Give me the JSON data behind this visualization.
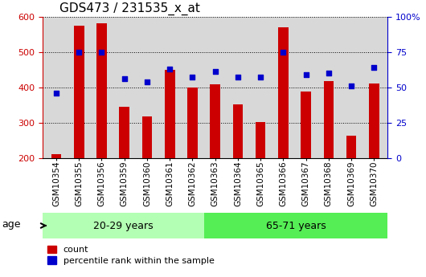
{
  "title": "GDS473 / 231535_x_at",
  "samples": [
    "GSM10354",
    "GSM10355",
    "GSM10356",
    "GSM10359",
    "GSM10360",
    "GSM10361",
    "GSM10362",
    "GSM10363",
    "GSM10364",
    "GSM10365",
    "GSM10366",
    "GSM10367",
    "GSM10368",
    "GSM10369",
    "GSM10370"
  ],
  "counts": [
    210,
    575,
    580,
    345,
    318,
    450,
    400,
    408,
    352,
    302,
    570,
    388,
    418,
    263,
    410
  ],
  "percentile_ranks": [
    46,
    75,
    75,
    56,
    54,
    63,
    57,
    61,
    57,
    57,
    75,
    59,
    60,
    51,
    64
  ],
  "group1_label": "20-29 years",
  "group2_label": "65-71 years",
  "group1_count": 7,
  "bar_color": "#cc0000",
  "dot_color": "#0000cc",
  "ylim_left": [
    200,
    600
  ],
  "ylim_right": [
    0,
    100
  ],
  "yticks_left": [
    200,
    300,
    400,
    500,
    600
  ],
  "yticks_right": [
    0,
    25,
    50,
    75,
    100
  ],
  "plot_bg_color": "#d8d8d8",
  "group1_bg": "#b3ffb3",
  "group2_bg": "#55ee55",
  "legend_items": [
    "count",
    "percentile rank within the sample"
  ],
  "title_fontsize": 11,
  "tick_fontsize": 7.5,
  "axis_label_fontsize": 8,
  "bar_width": 0.45
}
